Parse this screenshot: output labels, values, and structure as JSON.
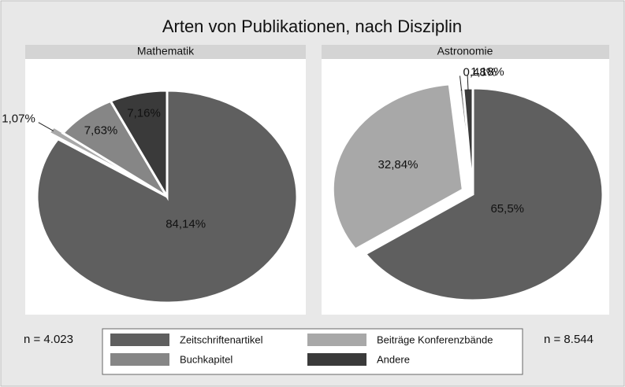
{
  "title": "Arten von Publikationen, nach Disziplin",
  "chart_data": [
    {
      "type": "pie",
      "title": "Mathematik",
      "annotation": "n = 4.023",
      "categories": [
        "Zeitschriftenartikel",
        "Beiträge Konferenzbände",
        "Buchkapitel",
        "Andere"
      ],
      "values": [
        84.14,
        1.07,
        7.63,
        7.16
      ],
      "value_labels": [
        "84,14%",
        "1,07%",
        "7,63%",
        "7,16%"
      ],
      "colors": [
        "#5f5f5f",
        "#a8a8a8",
        "#868686",
        "#3a3a3a"
      ],
      "explode": [
        false,
        true,
        false,
        false
      ]
    },
    {
      "type": "pie",
      "title": "Astronomie",
      "annotation": "n = 8.544",
      "categories": [
        "Zeitschriftenartikel",
        "Beiträge Konferenzbände",
        "Buchkapitel",
        "Andere"
      ],
      "values": [
        65.5,
        32.84,
        0.48,
        1.18
      ],
      "value_labels": [
        "65,5%",
        "32,84%",
        "0,48%",
        "1,18%"
      ],
      "colors": [
        "#5f5f5f",
        "#a8a8a8",
        "#868686",
        "#3a3a3a"
      ],
      "explode": [
        false,
        true,
        false,
        false
      ]
    }
  ]
}
